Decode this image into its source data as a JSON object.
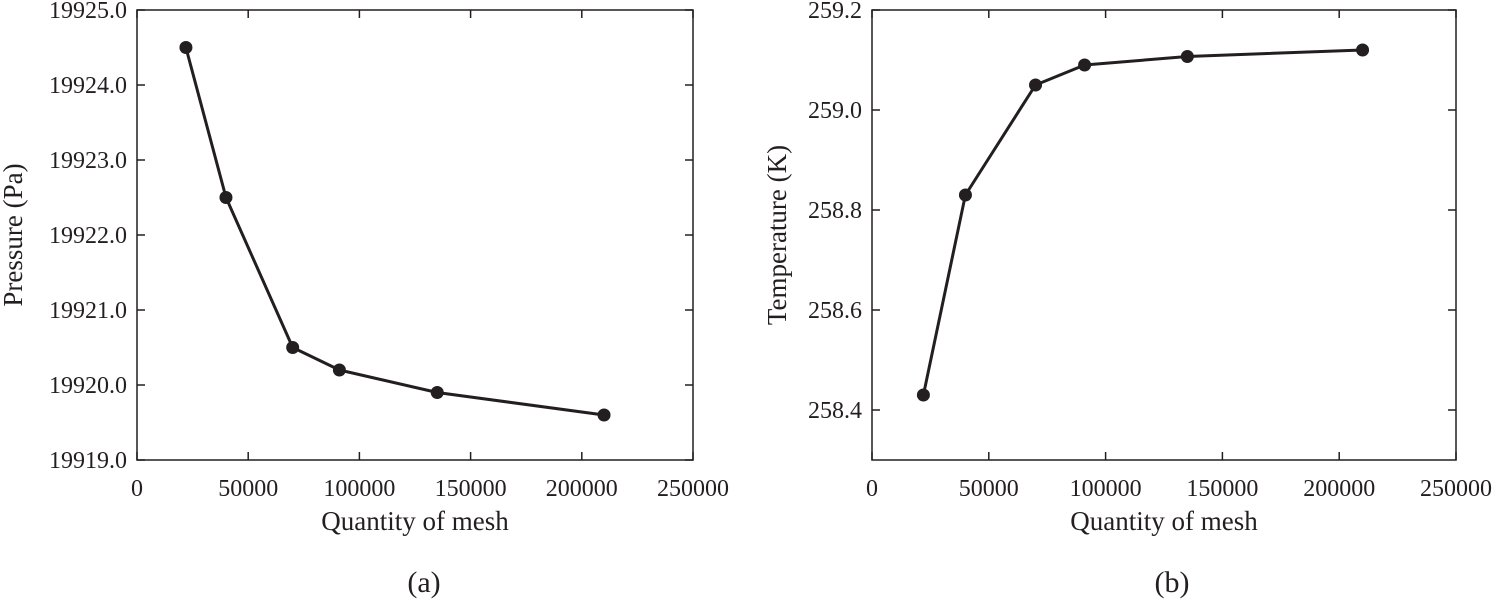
{
  "chart_data": [
    {
      "type": "line",
      "panel_label": "(a)",
      "xlabel": "Quantity of mesh",
      "ylabel": "Pressure (Pa)",
      "xlim": [
        0,
        250000
      ],
      "ylim": [
        19919.0,
        19925.0
      ],
      "xticks": [
        "0",
        "50000",
        "100000",
        "150000",
        "200000",
        "250000"
      ],
      "yticks": [
        "19919.0",
        "19920.0",
        "19921.0",
        "19922.0",
        "19923.0",
        "19924.0",
        "19925.0"
      ],
      "grid": false,
      "line_color": "#231f20",
      "series": [
        {
          "x": [
            22000,
            40000,
            70000,
            91000,
            135000,
            210000
          ],
          "values": [
            19924.5,
            19922.5,
            19920.5,
            19920.2,
            19919.9,
            19919.6
          ]
        }
      ]
    },
    {
      "type": "line",
      "panel_label": "(b)",
      "xlabel": "Quantity of mesh",
      "ylabel": "Temperature (K)",
      "xlim": [
        0,
        250000
      ],
      "ylim": [
        258.3,
        259.2
      ],
      "xticks": [
        "0",
        "50000",
        "100000",
        "150000",
        "200000",
        "250000"
      ],
      "yticks": [
        "258.4",
        "258.6",
        "258.8",
        "259.0",
        "259.2"
      ],
      "grid": false,
      "line_color": "#231f20",
      "series": [
        {
          "x": [
            22000,
            40000,
            70000,
            91000,
            135000,
            210000
          ],
          "values": [
            258.43,
            258.83,
            259.05,
            259.09,
            259.107,
            259.12
          ]
        }
      ]
    }
  ]
}
